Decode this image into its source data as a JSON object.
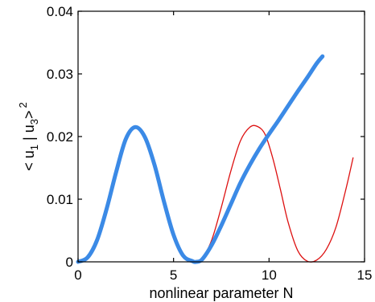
{
  "chart_data": {
    "type": "line",
    "title": "",
    "xlabel": "nonlinear parameter N",
    "ylabel": "< u1 | u3 >^2",
    "ylabel_parts": {
      "open": "< u",
      "sub1": "1",
      "mid": " | u",
      "sub2": "3",
      "close": ">",
      "sup": "2"
    },
    "xlim": [
      0,
      15
    ],
    "ylim": [
      0,
      0.04
    ],
    "x_ticks": [
      0,
      5,
      10,
      15
    ],
    "x_tick_labels": [
      "0",
      "5",
      "10",
      "15"
    ],
    "y_ticks": [
      0,
      0.01,
      0.02,
      0.03,
      0.04
    ],
    "y_tick_labels": [
      "0",
      "0.01",
      "0.02",
      "0.03",
      "0.04"
    ],
    "grid": false,
    "legend": "none",
    "series": [
      {
        "color": "#dd1111",
        "style": "thin",
        "x": [
          0,
          0.5,
          1,
          1.5,
          2,
          2.5,
          3,
          3.5,
          4,
          4.5,
          5,
          5.5,
          6,
          6.2,
          6.5,
          7,
          7.5,
          8,
          8.5,
          9,
          9.4,
          9.8,
          10.2,
          10.6,
          11,
          11.5,
          12,
          12.5,
          13,
          13.5,
          14,
          14.4
        ],
        "y": [
          0,
          0.0007,
          0.0035,
          0.0085,
          0.0144,
          0.0196,
          0.0215,
          0.0199,
          0.0155,
          0.0096,
          0.0043,
          0.001,
          0.0001,
          0,
          0.0005,
          0.0035,
          0.0087,
          0.0145,
          0.0193,
          0.0215,
          0.0216,
          0.0203,
          0.0165,
          0.0115,
          0.0063,
          0.0018,
          0.0001,
          0.0003,
          0.002,
          0.0055,
          0.0113,
          0.0166
        ]
      },
      {
        "color": "#3b8ae6",
        "style": "thick",
        "x": [
          0,
          0.5,
          1,
          1.5,
          2,
          2.5,
          3,
          3.5,
          4,
          4.5,
          5,
          5.5,
          6,
          6.2,
          6.5,
          7,
          7.5,
          8,
          8.5,
          9,
          9.5,
          10,
          10.5,
          11,
          11.5,
          12,
          12.5,
          12.8
        ],
        "y": [
          0,
          0.0007,
          0.0035,
          0.0085,
          0.0144,
          0.0196,
          0.0215,
          0.0199,
          0.0155,
          0.0096,
          0.0043,
          0.001,
          0.0001,
          0,
          0.0004,
          0.0027,
          0.0058,
          0.0092,
          0.0126,
          0.0155,
          0.0181,
          0.0204,
          0.0226,
          0.0249,
          0.0272,
          0.0294,
          0.0317,
          0.0328
        ]
      }
    ]
  }
}
